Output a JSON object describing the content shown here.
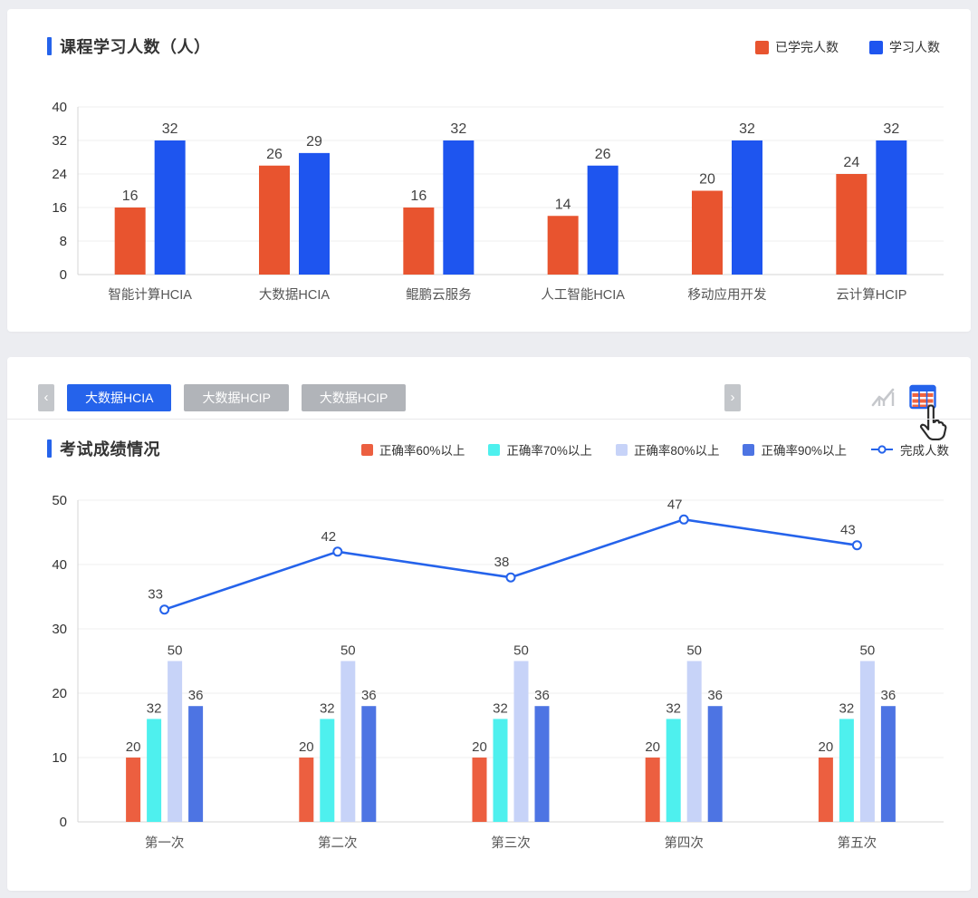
{
  "colors": {
    "accent": "#2563eb",
    "page_bg": "#ecedf1",
    "grid": "#efefef",
    "axis": "#d6d6d6",
    "tick_text": "#333333",
    "bar_label": "#434343",
    "category_text": "#555555",
    "tab_active_bg": "#2563eb",
    "tab_inactive_bg": "#b1b4b9",
    "nav_btn_bg": "#c3c6ca",
    "line_chart_icon": "#c6c8cc",
    "table_icon_blue": "#2563eb",
    "table_icon_orange": "#f1633f"
  },
  "panel1": {
    "title": "课程学习人数（人）",
    "legend": [
      {
        "label": "已学完人数",
        "color": "#e8542f",
        "type": "square"
      },
      {
        "label": "学习人数",
        "color": "#1e55ef",
        "type": "square"
      }
    ]
  },
  "panel2": {
    "tabs": {
      "prev_label": "‹",
      "next_label": "›",
      "items": [
        {
          "label": "大数据HCIA",
          "active": true
        },
        {
          "label": "大数据HCIP",
          "active": false
        },
        {
          "label": "大数据HCIP",
          "active": false
        }
      ]
    },
    "view_icons": [
      {
        "name": "line-chart-icon"
      },
      {
        "name": "table-view-icon"
      }
    ],
    "title": "考试成绩情况",
    "legend": [
      {
        "label": "正确率60%以上",
        "color": "#ec5f40",
        "type": "square"
      },
      {
        "label": "正确率70%以上",
        "color": "#4ef0ee",
        "type": "square"
      },
      {
        "label": "正确率80%以上",
        "color": "#c7d3f8",
        "type": "square"
      },
      {
        "label": "正确率90%以上",
        "color": "#4d74e3",
        "type": "square"
      },
      {
        "label": "完成人数",
        "color": "#2563eb",
        "type": "line-marker"
      }
    ]
  },
  "chart_data": [
    {
      "type": "bar",
      "title": "课程学习人数（人）",
      "categories": [
        "智能计算HCIA",
        "大数据HCIA",
        "鲲鹏云服务",
        "人工智能HCIA",
        "移动应用开发",
        "云计算HCIP"
      ],
      "series": [
        {
          "name": "已学完人数",
          "color": "#e8542f",
          "values": [
            16,
            26,
            16,
            14,
            20,
            24
          ]
        },
        {
          "name": "学习人数",
          "color": "#1e55ef",
          "values": [
            32,
            29,
            32,
            26,
            32,
            32
          ]
        }
      ],
      "ylim": [
        0,
        40
      ],
      "yticks": [
        0,
        8,
        16,
        24,
        32,
        40
      ],
      "grid": true,
      "legend_position": "top-right"
    },
    {
      "type": "bar+line",
      "title": "考试成绩情况",
      "categories": [
        "第一次",
        "第二次",
        "第三次",
        "第四次",
        "第五次"
      ],
      "series": [
        {
          "name": "正确率60%以上",
          "color": "#ec5f40",
          "values": [
            20,
            20,
            20,
            20,
            20
          ]
        },
        {
          "name": "正确率70%以上",
          "color": "#4ef0ee",
          "values": [
            32,
            32,
            32,
            32,
            32
          ]
        },
        {
          "name": "正确率80%以上",
          "color": "#c7d3f8",
          "values": [
            50,
            50,
            50,
            50,
            50
          ]
        },
        {
          "name": "正确率90%以上",
          "color": "#4d74e3",
          "values": [
            36,
            36,
            36,
            36,
            36
          ]
        }
      ],
      "line_series": {
        "name": "完成人数",
        "color": "#2563eb",
        "values": [
          33,
          42,
          38,
          47,
          43
        ]
      },
      "ylim": [
        0,
        50
      ],
      "yticks": [
        0,
        10,
        20,
        30,
        40,
        50
      ],
      "grid": true,
      "bars_drawn_at_half_of_label": true,
      "legend_position": "top"
    }
  ]
}
